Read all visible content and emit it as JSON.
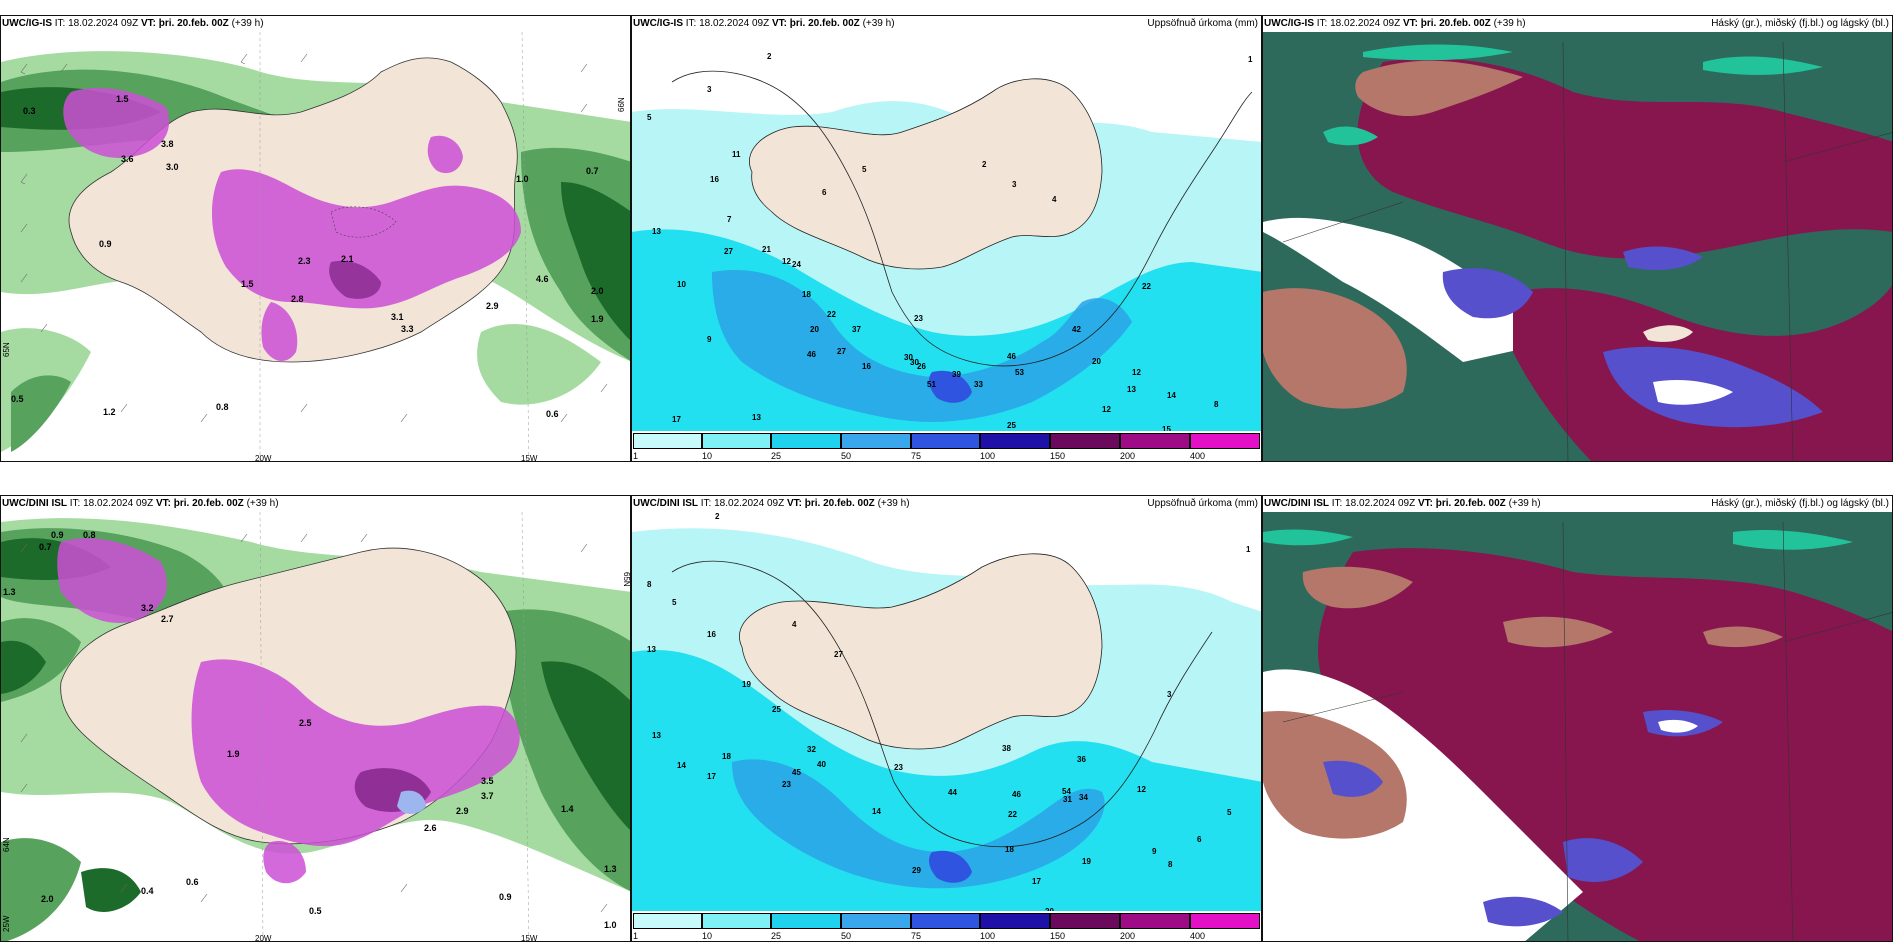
{
  "panels": {
    "p1": {
      "title_model": "UWC/IG-IS",
      "title_it": "IT: 18.02.2024 09Z",
      "title_vt": "VT: þri. 20.feb. 00Z",
      "title_lead": "(+39 h)",
      "title_right": "",
      "title_wrap": "h)"
    },
    "p2": {
      "title_model": "UWC/IG-IS",
      "title_it": "IT: 18.02.2024 09Z",
      "title_vt": "VT: þri. 20.feb. 00Z",
      "title_lead": "(+39 h)",
      "title_right": "Uppsöfnuð úrkoma (mm)"
    },
    "p3": {
      "title_model": "UWC/IG-IS",
      "title_it": "IT: 18.02.2024 09Z",
      "title_vt": "VT: þri. 20.feb. 00Z",
      "title_lead": "(+39 h)",
      "title_right": "Háský (gr.), miðský (fj.bl.) og lágský (bl.)"
    },
    "p4": {
      "title_model": "UWC/DINI ISL",
      "title_it": "IT: 18.02.2024 09Z",
      "title_vt": "VT: þri. 20.feb. 00Z",
      "title_lead": "(+39 h)",
      "title_right": ""
    },
    "p5": {
      "title_model": "UWC/DINI ISL",
      "title_it": "IT: 18.02.2024 09Z",
      "title_vt": "VT: þri. 20.feb. 00Z",
      "title_lead": "(+39 h)",
      "title_right": "Uppsöfnuð úrkoma (mm)"
    },
    "p6": {
      "title_model": "UWC/DINI ISL",
      "title_it": "IT: 18.02.2024 09Z",
      "title_vt": "VT: þri. 20.feb. 00Z",
      "title_lead": "(+39 h)",
      "title_right": "Háský (gr.), miðský (fj.bl.) og lágský (bl.)"
    }
  },
  "grid_labels": {
    "lon_20": "20W",
    "lon_15": "15W",
    "lat_66": "66N",
    "lat_65": "65N",
    "lat_64": "64N"
  },
  "colorbar": {
    "labels": [
      "1",
      "10",
      "25",
      "50",
      "75",
      "100",
      "150",
      "200",
      "400"
    ],
    "colors": [
      "#c7fbfb",
      "#7ff1f5",
      "#1fd3ef",
      "#3aa6ec",
      "#2f54e0",
      "#1f11a8",
      "#6b0a5c",
      "#9d0b86",
      "#e410c6",
      "#f3a0ef"
    ]
  },
  "colors": {
    "land": "#f2e5d7",
    "sea_green_dark": "#1d6b2a",
    "sea_green_mid": "#57a25d",
    "sea_green_light": "#a5dba1",
    "precip_pink": "#cc4fd6",
    "precip_light": "#e9a0ef",
    "precip_cyan_light": "#b7f5f7",
    "precip_cyan": "#22e0ef",
    "precip_blue": "#2aa2e6",
    "cloud_teal": "#2d6a5b",
    "cloud_maroon": "#86164d",
    "cloud_salmon": "#b5776a",
    "cloud_blue": "#5650cc",
    "cloud_mint": "#22c39a"
  },
  "precip_values_top": [
    "2",
    "5",
    "3",
    "11",
    "16",
    "7",
    "21",
    "27",
    "12",
    "24",
    "13",
    "10",
    "9",
    "18",
    "22",
    "20",
    "37",
    "46",
    "27",
    "16",
    "30",
    "26",
    "23",
    "39",
    "33",
    "46",
    "53",
    "20",
    "12",
    "13",
    "15",
    "14",
    "17",
    "13",
    "16",
    "12",
    "22",
    "25",
    "11",
    "15",
    "1",
    "2",
    "3",
    "4",
    "5",
    "6",
    "8",
    "30",
    "51",
    "42"
  ],
  "precip_values_bottom": [
    "2",
    "8",
    "5",
    "4",
    "13",
    "16",
    "19",
    "25",
    "18",
    "23",
    "32",
    "40",
    "45",
    "27",
    "13",
    "14",
    "17",
    "23",
    "44",
    "46",
    "38",
    "22",
    "18",
    "14",
    "12",
    "19",
    "29",
    "17",
    "8",
    "6",
    "5",
    "3",
    "1",
    "9",
    "54",
    "36",
    "31",
    "34",
    "20",
    "12"
  ],
  "wind_values_top": [
    "0.3",
    "1.5",
    "3.8",
    "3.0",
    "2.3",
    "1.5",
    "2.8",
    "2.1",
    "3.3",
    "3.1",
    "2.9",
    "1.0",
    "0.7",
    "0.5",
    "0.9",
    "1.9",
    "2.0",
    "1.2",
    "0.8",
    "0.6",
    "4.6",
    "3.6"
  ],
  "wind_values_bottom": [
    "0.9",
    "0.7",
    "0.8",
    "1.3",
    "3.2",
    "2.7",
    "2.5",
    "1.9",
    "3.5",
    "3.7",
    "2.9",
    "2.6",
    "1.4",
    "0.6",
    "0.5",
    "0.4",
    "1.0",
    "2.0",
    "1.3",
    "0.9"
  ]
}
